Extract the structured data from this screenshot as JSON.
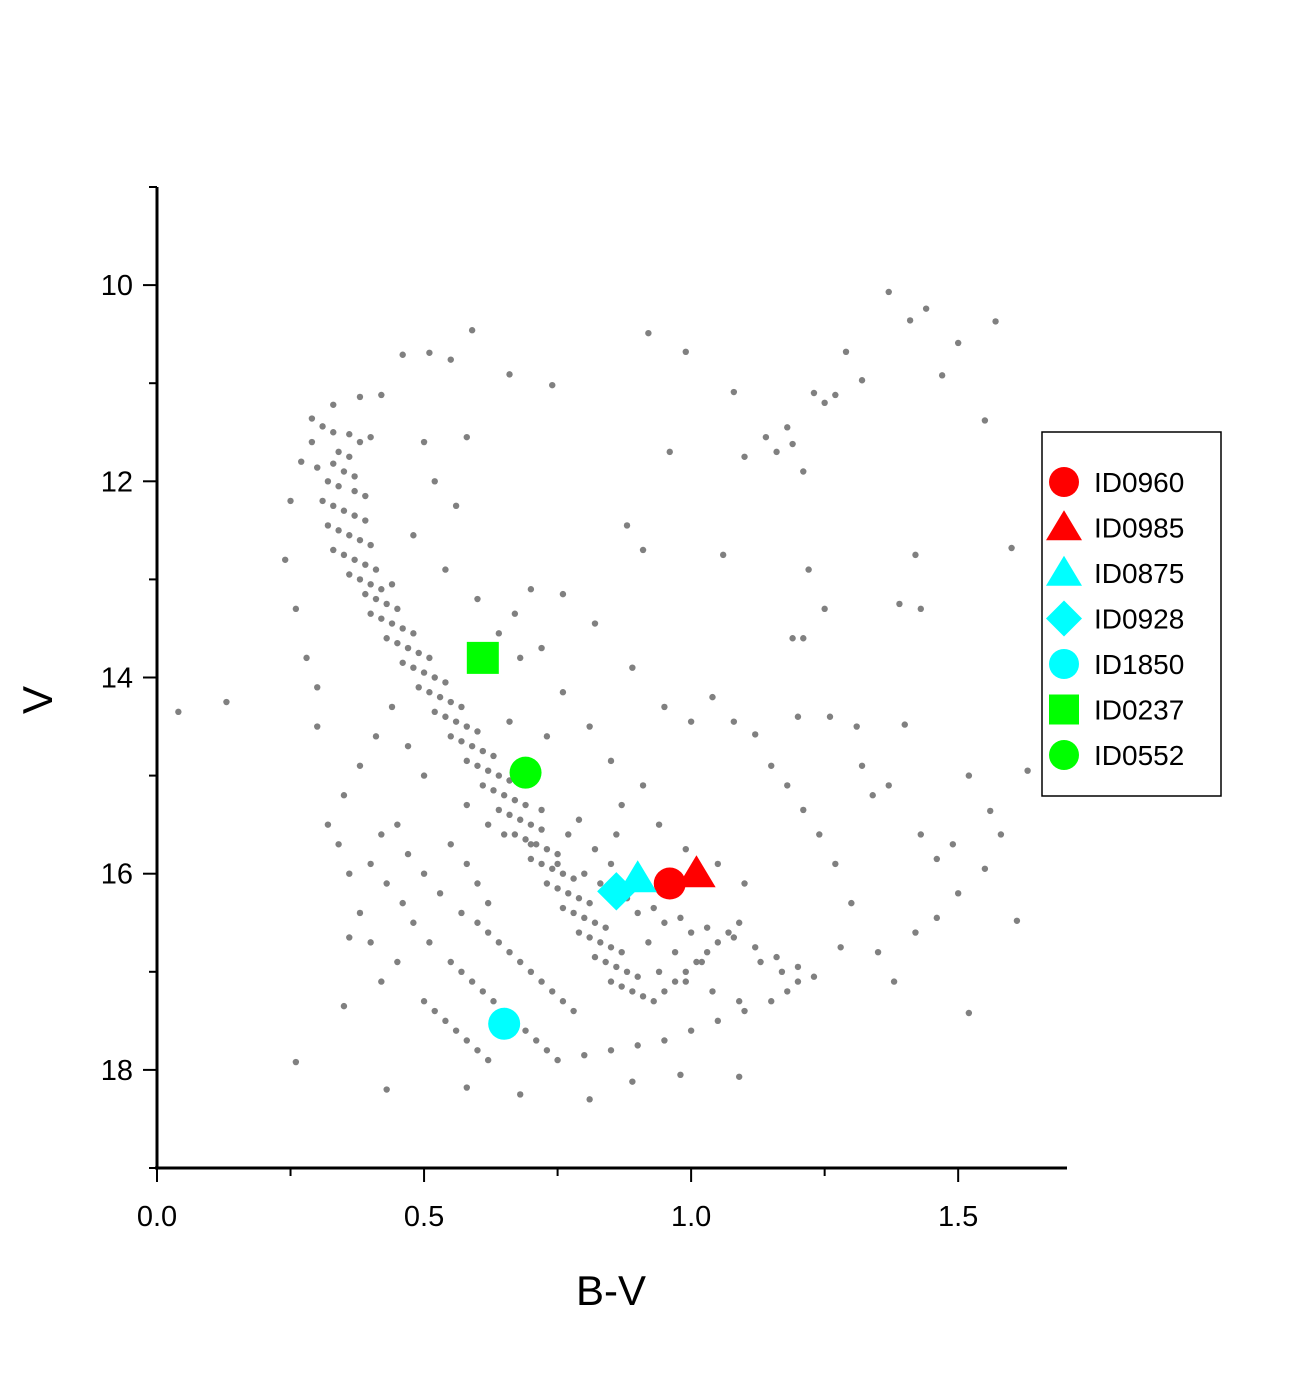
{
  "chart_data": {
    "type": "scatter",
    "title": "",
    "xlabel": "B-V",
    "ylabel": "V",
    "xlim": [
      0.0,
      1.7
    ],
    "ylim": [
      19.0,
      9.0
    ],
    "y_inverted": true,
    "x_ticks": [
      "0.0",
      "0.5",
      "1.0",
      "1.5"
    ],
    "y_ticks": [
      "10",
      "12",
      "14",
      "16",
      "18"
    ],
    "grid": false,
    "legend_position": "right",
    "background_points": {
      "color": "#808080",
      "note": "cluster members",
      "points": [
        [
          0.59,
          10.46
        ],
        [
          0.46,
          10.71
        ],
        [
          0.51,
          10.69
        ],
        [
          0.55,
          10.76
        ],
        [
          0.66,
          10.91
        ],
        [
          0.74,
          11.02
        ],
        [
          0.92,
          10.49
        ],
        [
          0.99,
          10.68
        ],
        [
          1.08,
          11.09
        ],
        [
          0.42,
          11.12
        ],
        [
          0.38,
          11.14
        ],
        [
          0.33,
          11.22
        ],
        [
          0.29,
          11.36
        ],
        [
          0.31,
          11.44
        ],
        [
          0.33,
          11.5
        ],
        [
          0.36,
          11.52
        ],
        [
          0.38,
          11.6
        ],
        [
          0.4,
          11.55
        ],
        [
          0.34,
          11.7
        ],
        [
          0.36,
          11.75
        ],
        [
          0.33,
          11.82
        ],
        [
          0.35,
          11.9
        ],
        [
          0.37,
          11.95
        ],
        [
          0.3,
          11.86
        ],
        [
          0.32,
          12.0
        ],
        [
          0.34,
          12.05
        ],
        [
          0.37,
          12.1
        ],
        [
          0.39,
          12.15
        ],
        [
          0.31,
          12.2
        ],
        [
          0.33,
          12.25
        ],
        [
          0.35,
          12.3
        ],
        [
          0.37,
          12.35
        ],
        [
          0.39,
          12.4
        ],
        [
          0.32,
          12.45
        ],
        [
          0.34,
          12.5
        ],
        [
          0.36,
          12.55
        ],
        [
          0.38,
          12.6
        ],
        [
          0.4,
          12.65
        ],
        [
          0.33,
          12.7
        ],
        [
          0.35,
          12.75
        ],
        [
          0.37,
          12.8
        ],
        [
          0.39,
          12.85
        ],
        [
          0.41,
          12.9
        ],
        [
          0.36,
          12.95
        ],
        [
          0.38,
          13.0
        ],
        [
          0.4,
          13.05
        ],
        [
          0.42,
          13.1
        ],
        [
          0.44,
          13.05
        ],
        [
          0.39,
          13.15
        ],
        [
          0.41,
          13.2
        ],
        [
          0.43,
          13.25
        ],
        [
          0.45,
          13.3
        ],
        [
          0.4,
          13.35
        ],
        [
          0.42,
          13.4
        ],
        [
          0.44,
          13.45
        ],
        [
          0.46,
          13.5
        ],
        [
          0.48,
          13.55
        ],
        [
          0.43,
          13.6
        ],
        [
          0.45,
          13.65
        ],
        [
          0.47,
          13.7
        ],
        [
          0.49,
          13.75
        ],
        [
          0.51,
          13.8
        ],
        [
          0.46,
          13.85
        ],
        [
          0.48,
          13.9
        ],
        [
          0.5,
          13.95
        ],
        [
          0.52,
          14.0
        ],
        [
          0.54,
          14.05
        ],
        [
          0.49,
          14.1
        ],
        [
          0.51,
          14.15
        ],
        [
          0.53,
          14.2
        ],
        [
          0.55,
          14.25
        ],
        [
          0.57,
          14.3
        ],
        [
          0.52,
          14.35
        ],
        [
          0.54,
          14.4
        ],
        [
          0.56,
          14.45
        ],
        [
          0.58,
          14.5
        ],
        [
          0.6,
          14.55
        ],
        [
          0.55,
          14.6
        ],
        [
          0.57,
          14.65
        ],
        [
          0.59,
          14.7
        ],
        [
          0.61,
          14.75
        ],
        [
          0.63,
          14.8
        ],
        [
          0.58,
          14.85
        ],
        [
          0.6,
          14.9
        ],
        [
          0.62,
          14.95
        ],
        [
          0.64,
          15.0
        ],
        [
          0.66,
          15.05
        ],
        [
          0.61,
          15.1
        ],
        [
          0.63,
          15.15
        ],
        [
          0.65,
          15.2
        ],
        [
          0.67,
          15.25
        ],
        [
          0.69,
          15.3
        ],
        [
          0.64,
          15.35
        ],
        [
          0.66,
          15.4
        ],
        [
          0.68,
          15.45
        ],
        [
          0.7,
          15.5
        ],
        [
          0.72,
          15.55
        ],
        [
          0.67,
          15.6
        ],
        [
          0.69,
          15.65
        ],
        [
          0.71,
          15.7
        ],
        [
          0.73,
          15.75
        ],
        [
          0.75,
          15.8
        ],
        [
          0.7,
          15.85
        ],
        [
          0.72,
          15.9
        ],
        [
          0.74,
          15.95
        ],
        [
          0.76,
          16.0
        ],
        [
          0.78,
          16.05
        ],
        [
          0.73,
          16.1
        ],
        [
          0.75,
          16.15
        ],
        [
          0.77,
          16.2
        ],
        [
          0.79,
          16.25
        ],
        [
          0.81,
          16.3
        ],
        [
          0.76,
          16.35
        ],
        [
          0.78,
          16.4
        ],
        [
          0.8,
          16.45
        ],
        [
          0.82,
          16.5
        ],
        [
          0.84,
          16.55
        ],
        [
          0.79,
          16.6
        ],
        [
          0.81,
          16.65
        ],
        [
          0.83,
          16.7
        ],
        [
          0.85,
          16.75
        ],
        [
          0.87,
          16.8
        ],
        [
          0.82,
          16.85
        ],
        [
          0.84,
          16.9
        ],
        [
          0.86,
          16.95
        ],
        [
          0.88,
          17.0
        ],
        [
          0.9,
          17.05
        ],
        [
          0.85,
          17.1
        ],
        [
          0.87,
          17.15
        ],
        [
          0.89,
          17.2
        ],
        [
          0.91,
          17.25
        ],
        [
          0.93,
          17.3
        ],
        [
          0.95,
          17.2
        ],
        [
          0.97,
          17.1
        ],
        [
          0.99,
          17.0
        ],
        [
          1.01,
          16.9
        ],
        [
          1.03,
          16.8
        ],
        [
          1.05,
          16.7
        ],
        [
          1.07,
          16.6
        ],
        [
          1.09,
          16.5
        ],
        [
          0.6,
          16.5
        ],
        [
          0.62,
          16.6
        ],
        [
          0.64,
          16.7
        ],
        [
          0.66,
          16.8
        ],
        [
          0.68,
          16.9
        ],
        [
          0.7,
          17.0
        ],
        [
          0.72,
          17.1
        ],
        [
          0.74,
          17.2
        ],
        [
          0.76,
          17.3
        ],
        [
          0.78,
          17.4
        ],
        [
          0.55,
          16.9
        ],
        [
          0.57,
          17.0
        ],
        [
          0.59,
          17.1
        ],
        [
          0.61,
          17.2
        ],
        [
          0.63,
          17.3
        ],
        [
          0.65,
          17.4
        ],
        [
          0.67,
          17.5
        ],
        [
          0.69,
          17.6
        ],
        [
          0.71,
          17.7
        ],
        [
          0.73,
          17.8
        ],
        [
          0.5,
          17.3
        ],
        [
          0.52,
          17.4
        ],
        [
          0.54,
          17.5
        ],
        [
          0.56,
          17.6
        ],
        [
          0.58,
          17.7
        ],
        [
          0.6,
          17.8
        ],
        [
          0.62,
          17.9
        ],
        [
          0.75,
          17.9
        ],
        [
          0.8,
          17.85
        ],
        [
          0.85,
          17.8
        ],
        [
          0.9,
          17.75
        ],
        [
          0.95,
          17.7
        ],
        [
          1.0,
          17.6
        ],
        [
          1.05,
          17.5
        ],
        [
          1.1,
          17.4
        ],
        [
          1.15,
          17.3
        ],
        [
          1.18,
          17.2
        ],
        [
          1.2,
          17.1
        ],
        [
          1.17,
          17.0
        ],
        [
          1.13,
          16.9
        ],
        [
          0.9,
          16.4
        ],
        [
          0.95,
          16.5
        ],
        [
          1.0,
          16.6
        ],
        [
          0.92,
          16.7
        ],
        [
          0.97,
          16.8
        ],
        [
          1.02,
          16.9
        ],
        [
          0.94,
          17.0
        ],
        [
          0.99,
          17.1
        ],
        [
          1.04,
          17.2
        ],
        [
          1.09,
          17.3
        ],
        [
          0.83,
          16.1
        ],
        [
          0.88,
          16.25
        ],
        [
          0.93,
          16.35
        ],
        [
          0.98,
          16.45
        ],
        [
          1.03,
          16.55
        ],
        [
          1.08,
          16.65
        ],
        [
          1.12,
          16.75
        ],
        [
          1.16,
          16.85
        ],
        [
          1.2,
          16.95
        ],
        [
          1.23,
          17.05
        ],
        [
          0.65,
          15.6
        ],
        [
          0.7,
          15.7
        ],
        [
          0.75,
          15.9
        ],
        [
          0.8,
          16.0
        ],
        [
          0.85,
          15.9
        ],
        [
          0.77,
          15.6
        ],
        [
          0.82,
          15.75
        ],
        [
          0.72,
          15.35
        ],
        [
          0.79,
          15.45
        ],
        [
          0.86,
          15.6
        ],
        [
          0.58,
          15.3
        ],
        [
          0.62,
          15.5
        ],
        [
          0.55,
          15.7
        ],
        [
          0.58,
          15.9
        ],
        [
          0.6,
          16.1
        ],
        [
          0.62,
          16.3
        ],
        [
          0.57,
          16.4
        ],
        [
          0.53,
          16.2
        ],
        [
          0.5,
          16.0
        ],
        [
          0.47,
          15.8
        ],
        [
          0.45,
          15.5
        ],
        [
          0.42,
          15.6
        ],
        [
          0.4,
          15.9
        ],
        [
          0.43,
          16.1
        ],
        [
          0.46,
          16.3
        ],
        [
          0.48,
          16.5
        ],
        [
          0.51,
          16.7
        ],
        [
          0.45,
          16.9
        ],
        [
          0.42,
          17.1
        ],
        [
          0.4,
          16.7
        ],
        [
          0.38,
          16.4
        ],
        [
          0.36,
          16.0
        ],
        [
          0.34,
          15.7
        ],
        [
          0.32,
          15.5
        ],
        [
          0.35,
          15.2
        ],
        [
          0.38,
          14.9
        ],
        [
          0.41,
          14.6
        ],
        [
          0.44,
          14.3
        ],
        [
          0.47,
          14.7
        ],
        [
          0.5,
          15.0
        ],
        [
          0.28,
          13.8
        ],
        [
          0.3,
          14.1
        ],
        [
          0.26,
          13.3
        ],
        [
          0.24,
          12.8
        ],
        [
          0.25,
          12.2
        ],
        [
          0.27,
          11.8
        ],
        [
          0.29,
          11.6
        ],
        [
          0.3,
          14.5
        ],
        [
          0.04,
          14.35
        ],
        [
          0.13,
          14.25
        ],
        [
          0.36,
          16.65
        ],
        [
          0.35,
          17.35
        ],
        [
          0.26,
          17.92
        ],
        [
          0.43,
          18.2
        ],
        [
          0.58,
          18.18
        ],
        [
          0.68,
          18.25
        ],
        [
          0.81,
          18.3
        ],
        [
          0.89,
          18.12
        ],
        [
          0.98,
          18.05
        ],
        [
          1.09,
          18.07
        ],
        [
          1.35,
          16.8
        ],
        [
          1.38,
          17.1
        ],
        [
          1.42,
          16.6
        ],
        [
          1.46,
          16.45
        ],
        [
          1.5,
          16.2
        ],
        [
          1.52,
          17.42
        ],
        [
          1.55,
          15.95
        ],
        [
          1.58,
          15.6
        ],
        [
          1.61,
          16.48
        ],
        [
          1.63,
          14.95
        ],
        [
          1.31,
          14.5
        ],
        [
          1.32,
          14.9
        ],
        [
          1.34,
          15.2
        ],
        [
          1.37,
          15.1
        ],
        [
          1.4,
          14.48
        ],
        [
          1.43,
          15.6
        ],
        [
          1.46,
          15.85
        ],
        [
          1.49,
          15.7
        ],
        [
          1.52,
          15.0
        ],
        [
          1.56,
          15.36
        ],
        [
          1.14,
          11.55
        ],
        [
          1.16,
          11.7
        ],
        [
          1.18,
          11.45
        ],
        [
          1.19,
          11.62
        ],
        [
          1.21,
          11.9
        ],
        [
          1.23,
          11.1
        ],
        [
          1.25,
          11.2
        ],
        [
          1.27,
          11.12
        ],
        [
          1.29,
          10.68
        ],
        [
          1.32,
          10.97
        ],
        [
          1.37,
          10.07
        ],
        [
          1.41,
          10.36
        ],
        [
          1.44,
          10.24
        ],
        [
          1.47,
          10.92
        ],
        [
          1.5,
          10.59
        ],
        [
          1.55,
          11.38
        ],
        [
          1.57,
          10.37
        ],
        [
          1.6,
          12.68
        ],
        [
          1.42,
          12.75
        ],
        [
          1.22,
          12.9
        ],
        [
          1.21,
          13.6
        ],
        [
          1.19,
          13.6
        ],
        [
          1.25,
          13.3
        ],
        [
          1.39,
          13.25
        ],
        [
          1.43,
          13.3
        ],
        [
          1.26,
          14.4
        ],
        [
          1.2,
          14.4
        ],
        [
          1.06,
          12.75
        ],
        [
          1.1,
          11.75
        ],
        [
          0.96,
          11.7
        ],
        [
          0.88,
          12.45
        ],
        [
          0.91,
          12.7
        ],
        [
          0.76,
          13.15
        ],
        [
          0.7,
          13.1
        ],
        [
          0.67,
          13.35
        ],
        [
          0.72,
          13.7
        ],
        [
          0.82,
          13.45
        ],
        [
          0.89,
          13.9
        ],
        [
          0.95,
          14.3
        ],
        [
          1.0,
          14.45
        ],
        [
          1.04,
          14.2
        ],
        [
          1.08,
          14.45
        ],
        [
          1.12,
          14.58
        ],
        [
          1.15,
          14.9
        ],
        [
          1.18,
          15.1
        ],
        [
          1.21,
          15.35
        ],
        [
          1.24,
          15.6
        ],
        [
          1.27,
          15.9
        ],
        [
          1.3,
          16.3
        ],
        [
          1.28,
          16.75
        ],
        [
          0.58,
          11.55
        ],
        [
          0.5,
          11.6
        ],
        [
          0.52,
          12.0
        ],
        [
          0.56,
          12.25
        ],
        [
          0.48,
          12.55
        ],
        [
          0.54,
          12.9
        ],
        [
          0.6,
          13.2
        ],
        [
          0.64,
          13.55
        ],
        [
          0.68,
          13.8
        ],
        [
          0.76,
          14.15
        ],
        [
          0.81,
          14.5
        ],
        [
          0.73,
          14.6
        ],
        [
          0.66,
          14.45
        ],
        [
          0.85,
          14.85
        ],
        [
          0.91,
          15.1
        ],
        [
          0.87,
          15.3
        ],
        [
          0.94,
          15.5
        ],
        [
          0.99,
          15.75
        ],
        [
          1.05,
          15.9
        ],
        [
          1.1,
          16.1
        ]
      ]
    },
    "series": [
      {
        "name": "ID0960",
        "marker": "circle",
        "color": "#ff0000",
        "x": 0.96,
        "y": 16.1
      },
      {
        "name": "ID0985",
        "marker": "triangle",
        "color": "#ff0000",
        "x": 1.01,
        "y": 16.0
      },
      {
        "name": "ID0875",
        "marker": "triangle",
        "color": "#00ffff",
        "x": 0.9,
        "y": 16.05
      },
      {
        "name": "ID0928",
        "marker": "diamond",
        "color": "#00ffff",
        "x": 0.86,
        "y": 16.18
      },
      {
        "name": "ID1850",
        "marker": "circle",
        "color": "#00ffff",
        "x": 0.65,
        "y": 17.53
      },
      {
        "name": "ID0237",
        "marker": "square",
        "color": "#00ff00",
        "x": 0.61,
        "y": 13.8
      },
      {
        "name": "ID0552",
        "marker": "circle",
        "color": "#00ff00",
        "x": 0.69,
        "y": 14.97
      }
    ]
  }
}
